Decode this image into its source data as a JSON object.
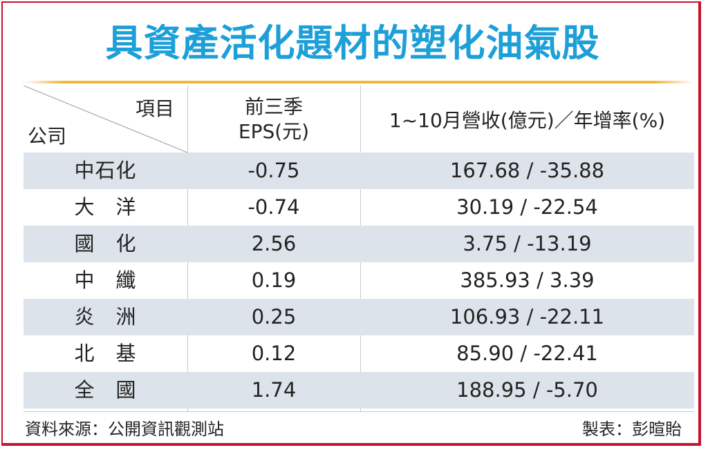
{
  "title": "具資產活化題材的塑化油氣股",
  "header": {
    "item": "項目",
    "company": "公司",
    "eps_line1": "前三季",
    "eps_line2": "EPS(元)",
    "revenue": "1~10月營收(億元)／年增率(%)"
  },
  "rows": [
    {
      "company": "中石化",
      "eps": "-0.75",
      "revenue": "167.68 / -35.88"
    },
    {
      "company": "大　洋",
      "eps": "-0.74",
      "revenue": "30.19 / -22.54"
    },
    {
      "company": "國　化",
      "eps": "2.56",
      "revenue": "3.75 / -13.19"
    },
    {
      "company": "中　纖",
      "eps": "0.19",
      "revenue": "385.93 / 3.39"
    },
    {
      "company": "炎　洲",
      "eps": "0.25",
      "revenue": "106.93 / -22.11"
    },
    {
      "company": "北　基",
      "eps": "0.12",
      "revenue": "85.90 / -22.41"
    },
    {
      "company": "全　國",
      "eps": "1.74",
      "revenue": "188.95 / -5.70"
    }
  ],
  "footer": {
    "source": "資料來源：公開資訊觀測站",
    "maker": "製表：彭暄貽"
  },
  "colors": {
    "title": "#1d9fd8",
    "accent_line": "#f0b63b",
    "frame": "#c8102e",
    "row_shade": "#dde3ea"
  }
}
